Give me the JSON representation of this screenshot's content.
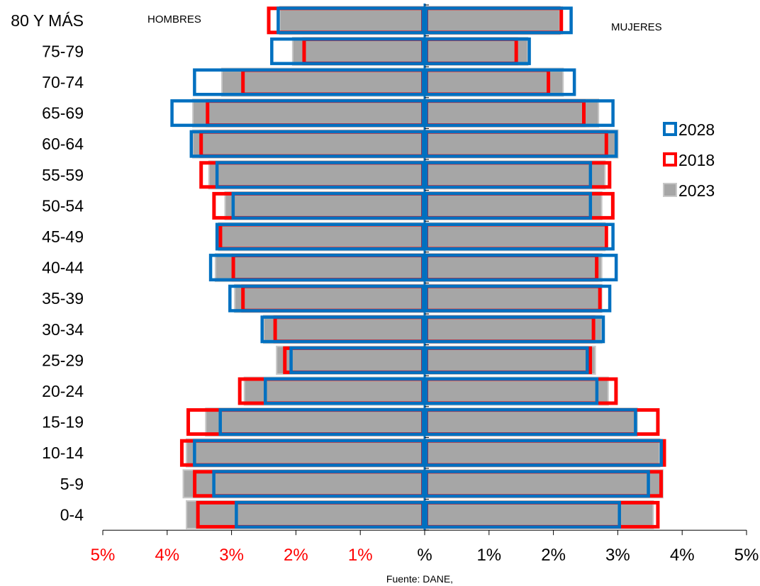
{
  "chart_data": {
    "type": "bar",
    "orientation": "horizontal-population-pyramid",
    "left_label": "HOMBRES",
    "right_label": "MUJERES",
    "source": "Fuente: DANE,",
    "categories": [
      "0-4",
      "5-9",
      "10-14",
      "15-19",
      "20-24",
      "25-29",
      "30-34",
      "35-39",
      "40-44",
      "45-49",
      "50-54",
      "55-59",
      "60-64",
      "65-69",
      "70-74",
      "75-79",
      "80 Y MÁS"
    ],
    "x_ticks": [
      "5%",
      "4%",
      "3%",
      "2%",
      "1%",
      "%",
      "1%",
      "2%",
      "3%",
      "4%",
      "5%"
    ],
    "x_tick_colors": [
      "#ff0000",
      "#ff0000",
      "#ff0000",
      "#ff0000",
      "#ff0000",
      "#000000",
      "#000000",
      "#000000",
      "#000000",
      "#000000",
      "#000000"
    ],
    "xlim": [
      -5,
      5
    ],
    "series": [
      {
        "name": "2023",
        "style": "filled",
        "color": "#a6a6a6",
        "men": [
          3.7,
          3.75,
          3.7,
          3.4,
          2.8,
          2.3,
          2.5,
          2.95,
          3.25,
          3.2,
          3.1,
          3.35,
          3.6,
          3.6,
          3.15,
          2.05,
          2.25
        ],
        "women": [
          3.55,
          3.7,
          3.65,
          3.3,
          2.85,
          2.65,
          2.75,
          2.75,
          2.75,
          2.8,
          2.75,
          2.8,
          3.0,
          2.7,
          2.15,
          1.6,
          2.1
        ]
      },
      {
        "name": "2018",
        "style": "outline",
        "color": "#ff0000",
        "men": [
          3.55,
          3.6,
          3.8,
          3.7,
          2.9,
          2.2,
          2.35,
          2.85,
          3.0,
          3.2,
          3.3,
          3.5,
          3.5,
          3.4,
          2.85,
          1.9,
          2.45
        ],
        "women": [
          3.65,
          3.7,
          3.75,
          3.65,
          3.0,
          2.6,
          2.65,
          2.75,
          2.7,
          2.85,
          2.95,
          2.9,
          2.85,
          2.5,
          1.95,
          1.45,
          2.15
        ]
      },
      {
        "name": "2028",
        "style": "outline",
        "color": "#0070c0",
        "men": [
          2.95,
          3.3,
          3.6,
          3.2,
          2.5,
          2.1,
          2.55,
          3.05,
          3.35,
          3.25,
          3.0,
          3.25,
          3.65,
          3.95,
          3.6,
          2.4,
          2.3
        ],
        "women": [
          3.05,
          3.5,
          3.7,
          3.3,
          2.7,
          2.55,
          2.8,
          2.9,
          3.0,
          2.95,
          2.6,
          2.6,
          3.0,
          2.95,
          2.35,
          1.65,
          2.3
        ]
      }
    ],
    "legend": {
      "placement": "right",
      "order": [
        "2028",
        "2018",
        "2023"
      ]
    }
  }
}
